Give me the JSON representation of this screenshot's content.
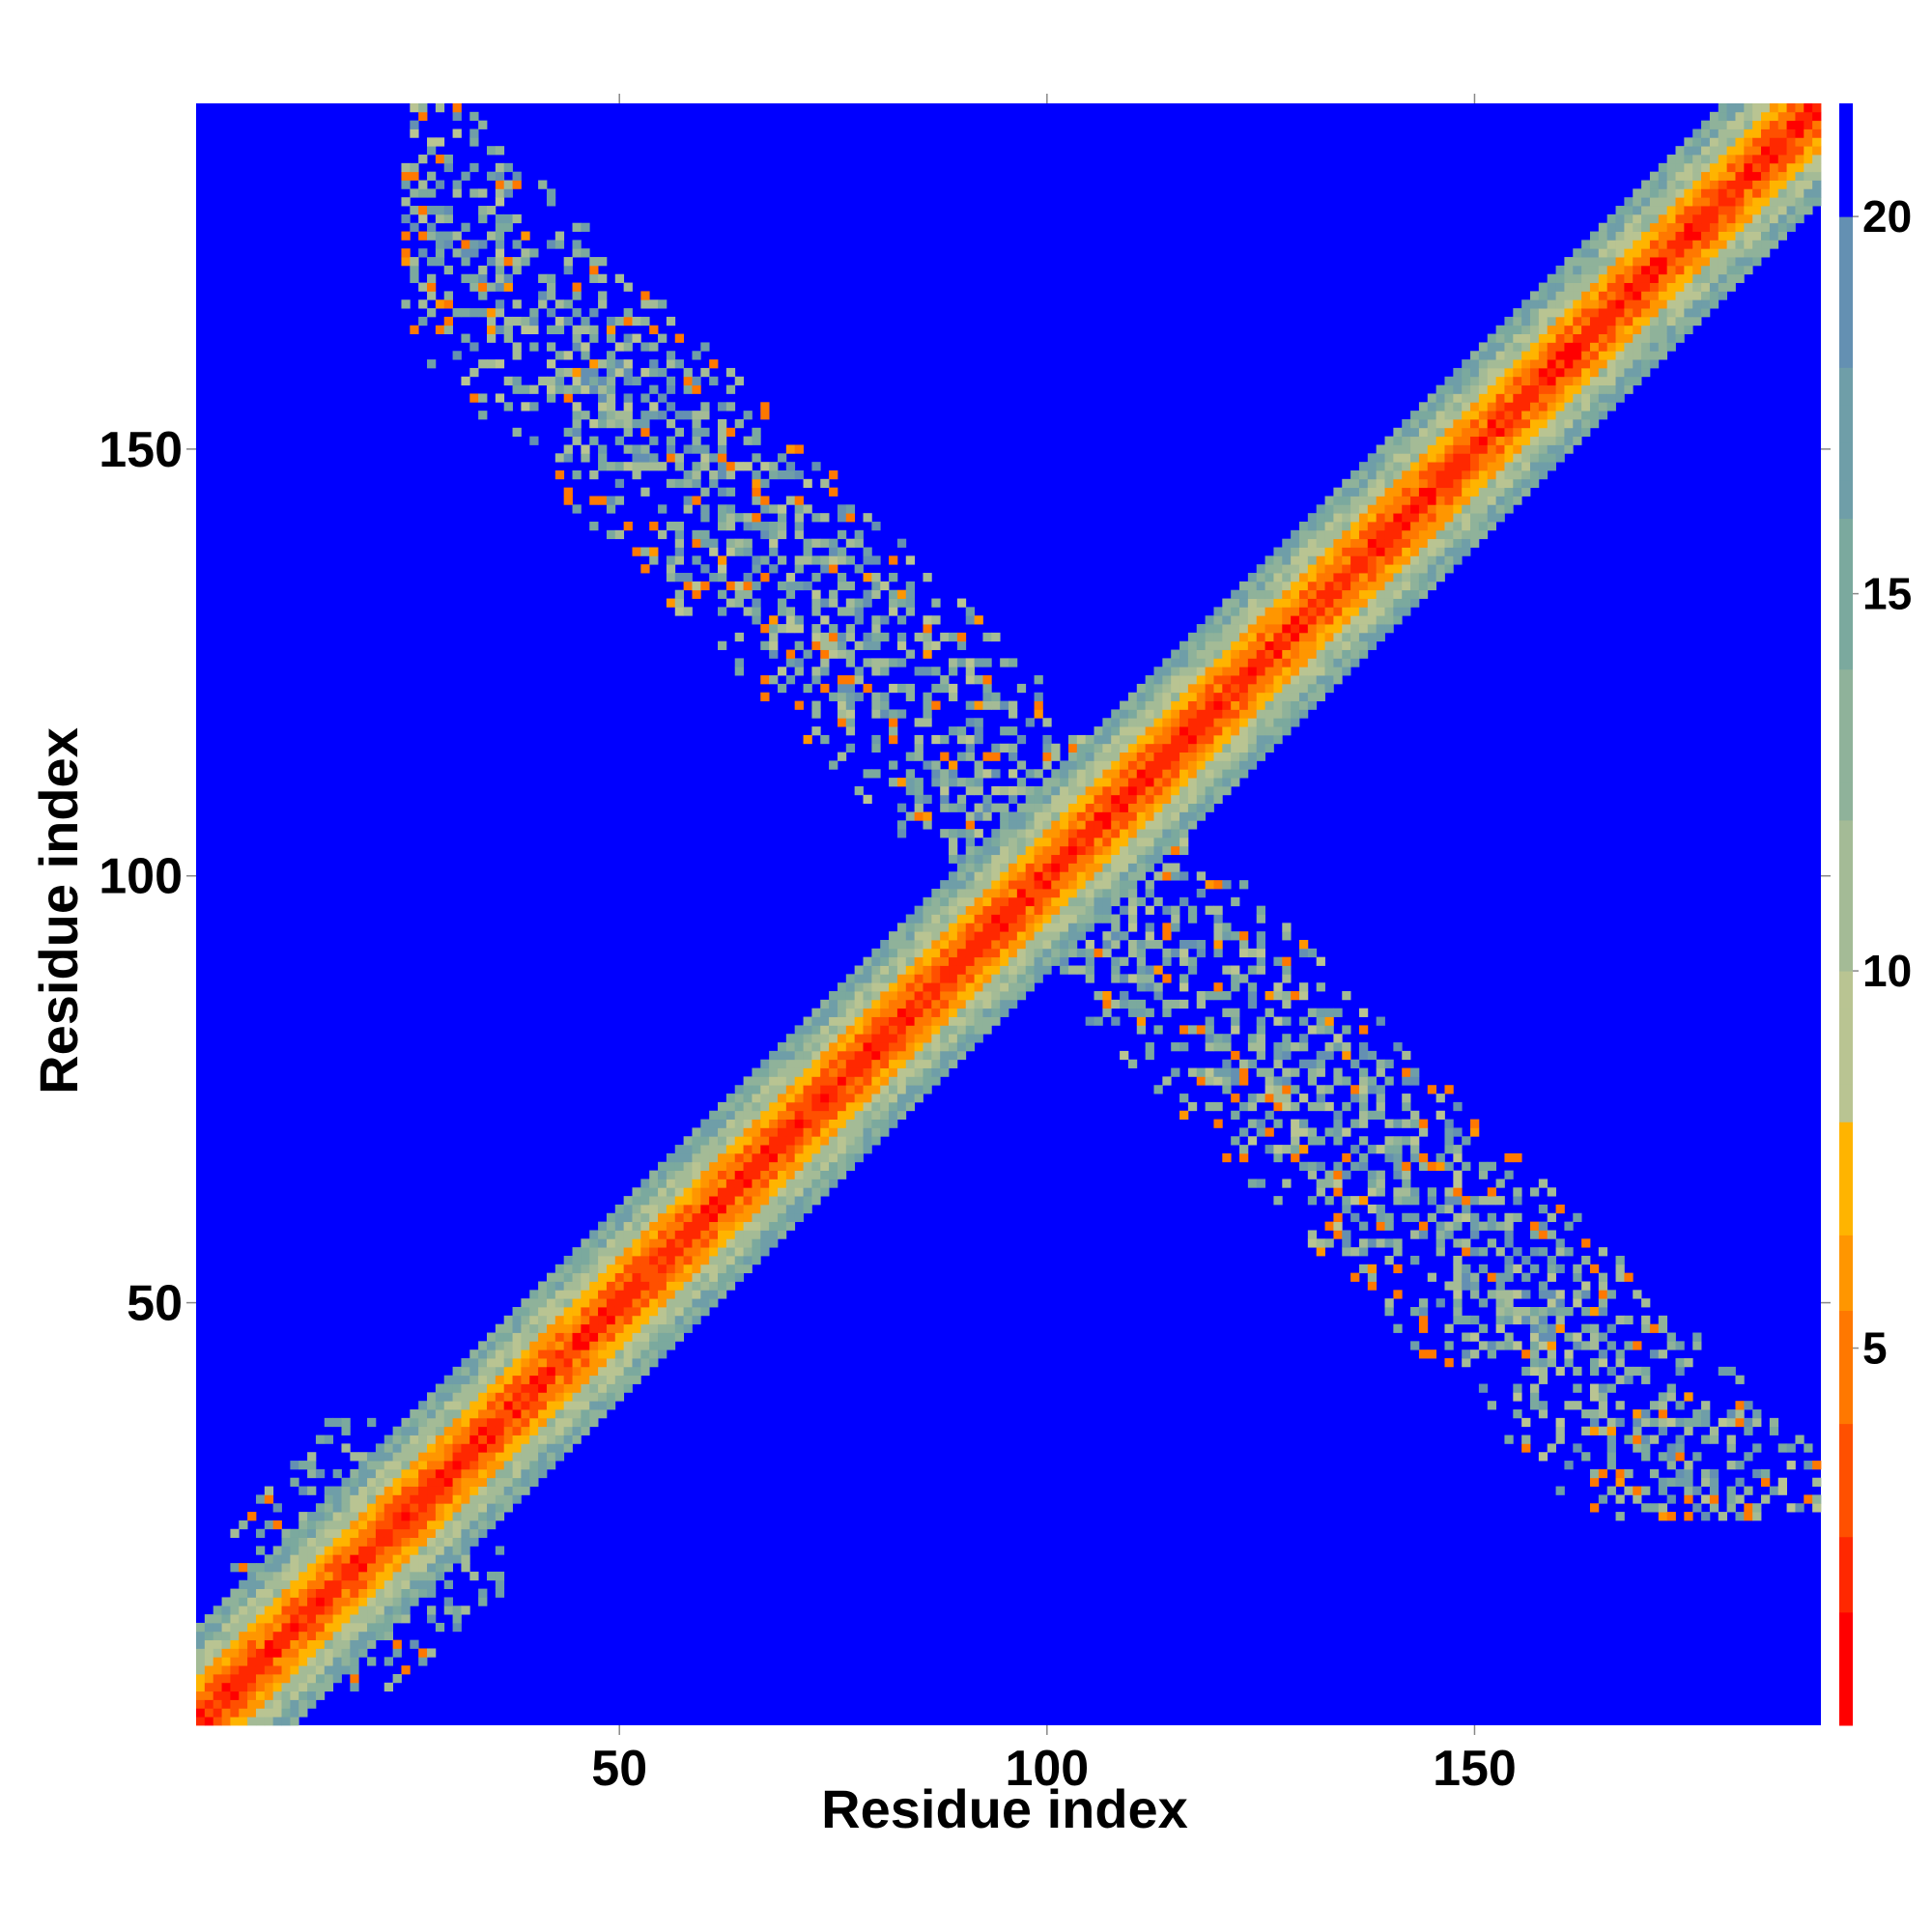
{
  "chart_data": {
    "type": "heatmap",
    "title": "",
    "xlabel": "Residue index",
    "ylabel": "Residue index",
    "n_residues": 190,
    "xlim": [
      0.5,
      190.5
    ],
    "ylim": [
      0.5,
      190.5
    ],
    "x_ticks": [
      50,
      100,
      150
    ],
    "y_ticks": [
      50,
      100,
      150
    ],
    "colorbar": {
      "ticks": [
        5,
        10,
        15,
        20
      ],
      "range": [
        0,
        21.5
      ],
      "contact_threshold": 8,
      "colors_below_threshold": [
        "#ff0000",
        "#ff2800",
        "#ff5000",
        "#ff7800",
        "#ff9600",
        "#ffb400"
      ],
      "colors_above_threshold": [
        "#b9c492",
        "#a4bb96",
        "#8fb29a",
        "#7ba99e",
        "#6f9ea8",
        "#6490b2"
      ],
      "color_max": "#0000ff"
    },
    "regions": [
      {
        "name": "diagonal-band",
        "band_width": 16
      },
      {
        "name": "n-terminal-contacts",
        "i_range": [
          8,
          35
        ],
        "j_range": [
          7,
          34
        ]
      },
      {
        "name": "antiparallel-contacts-upper",
        "i_range": [
          25,
          110
        ],
        "j_range": [
          90,
          190
        ]
      },
      {
        "name": "antiparallel-contacts-lower",
        "i_range": [
          90,
          190
        ],
        "j_range": [
          25,
          110
        ]
      }
    ]
  }
}
